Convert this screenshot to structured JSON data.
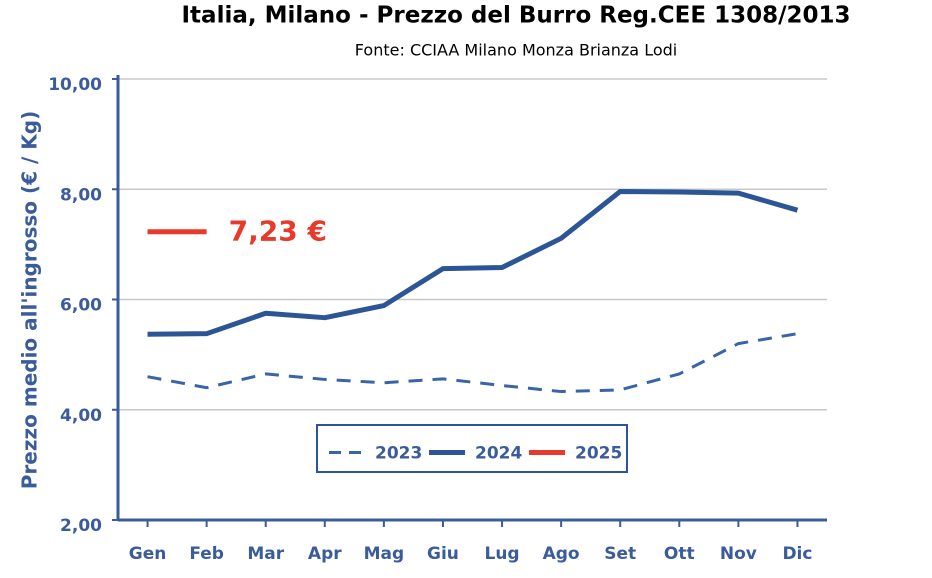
{
  "chart_data": {
    "type": "line",
    "title": "Italia, Milano - Prezzo del Burro Reg.CEE 1308/2013",
    "subtitle": "Fonte: CCIAA Milano Monza Brianza Lodi",
    "y_label": "Prezzo medio all'ingrosso (€ / Kg)",
    "categories": [
      "Gen",
      "Feb",
      "Mar",
      "Apr",
      "Mag",
      "Giu",
      "Lug",
      "Ago",
      "Set",
      "Ott",
      "Nov",
      "Dic"
    ],
    "series": [
      {
        "name": "2023",
        "color": "#3a64a8",
        "dashed": true,
        "values": [
          4.6,
          4.4,
          4.65,
          4.55,
          4.49,
          4.56,
          4.44,
          4.33,
          4.36,
          4.65,
          5.2,
          5.38
        ]
      },
      {
        "name": "2024",
        "color": "#2c5596",
        "dashed": false,
        "values": [
          5.37,
          5.38,
          5.75,
          5.67,
          5.89,
          6.56,
          6.58,
          7.11,
          7.96,
          7.95,
          7.93,
          7.62
        ]
      },
      {
        "name": "2025",
        "color": "#e8392a",
        "dashed": false,
        "values": [
          7.23,
          null,
          null,
          null,
          null,
          null,
          null,
          null,
          null,
          null,
          null,
          null
        ],
        "value_labels": [
          "7,23 €",
          null,
          null,
          null,
          null,
          null,
          null,
          null,
          null,
          null,
          null,
          null
        ]
      }
    ],
    "ylim": [
      2,
      10
    ],
    "yticks": [
      {
        "value": 2,
        "label": "2,00"
      },
      {
        "value": 4,
        "label": "4,00"
      },
      {
        "value": 6,
        "label": "6,00"
      },
      {
        "value": 8,
        "label": "8,00"
      },
      {
        "value": 10,
        "label": "10,00"
      }
    ],
    "grid": true,
    "legend": "bottom"
  }
}
